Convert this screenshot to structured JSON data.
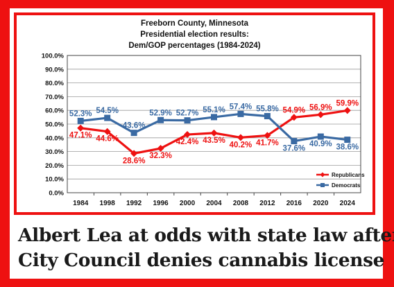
{
  "chart_data": {
    "type": "line",
    "title_lines": [
      "Freeborn County, Minnesota",
      "Presidential election results:",
      "Dem/GOP percentages (1984-2024)"
    ],
    "categories": [
      "1984",
      "1998",
      "1992",
      "1996",
      "2000",
      "2004",
      "2008",
      "2012",
      "2016",
      "2020",
      "2024"
    ],
    "yticks": [
      "0.0%",
      "10.0%",
      "20.0%",
      "30.0%",
      "40.0%",
      "50.0%",
      "60.0%",
      "70.0%",
      "80.0%",
      "90.0%",
      "100.0%"
    ],
    "ylim": [
      0,
      100
    ],
    "grid": true,
    "legend_position": "bottom-right",
    "series": [
      {
        "name": "Republicans",
        "color": "#ee1111",
        "marker": "diamond",
        "values": [
          47.1,
          44.6,
          28.6,
          32.3,
          42.4,
          43.5,
          40.2,
          41.7,
          54.9,
          56.9,
          59.9
        ],
        "labels": [
          "47.1%",
          "44.6%",
          "28.6%",
          "32.3%",
          "42.4%",
          "43.5%",
          "40.2%",
          "41.7%",
          "54.9%",
          "56.9%",
          "59.9%"
        ]
      },
      {
        "name": "Democrats",
        "color": "#3a6aa3",
        "marker": "square",
        "values": [
          52.3,
          54.5,
          43.6,
          52.9,
          52.7,
          55.1,
          57.4,
          55.8,
          37.6,
          40.9,
          38.6
        ],
        "labels": [
          "52.3%",
          "54.5%",
          "43.6%",
          "52.9%",
          "52.7%",
          "55.1%",
          "57.4%",
          "55.8%",
          "37.6%",
          "40.9%",
          "38.6%"
        ]
      }
    ]
  },
  "headline": {
    "line1": "Albert Lea at odds with state law after",
    "line2": "City Council denies cannabis license"
  }
}
